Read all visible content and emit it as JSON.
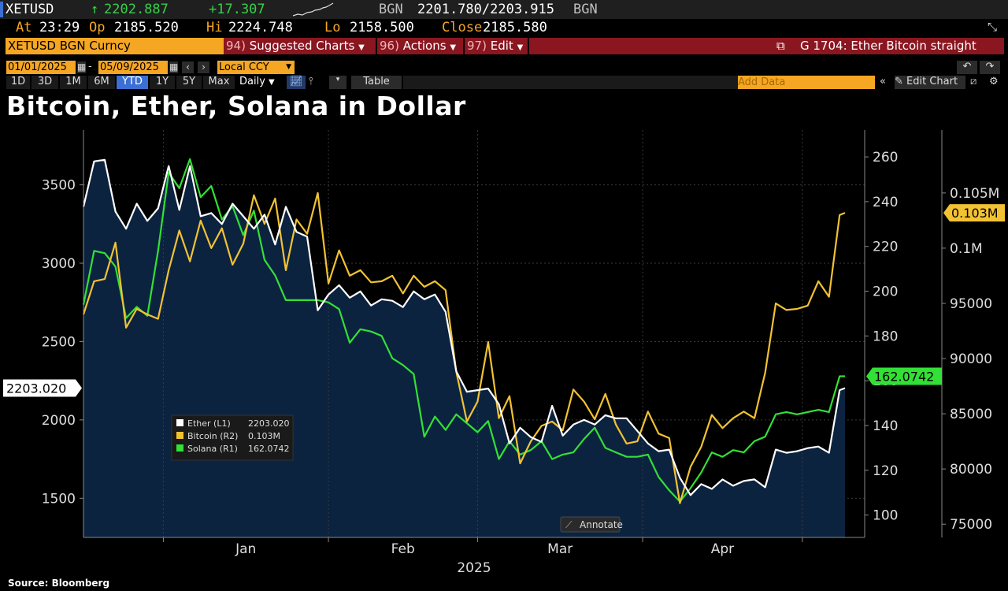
{
  "ticker": {
    "symbol": "XETUSD",
    "last": "2202.887",
    "change": "+17.307",
    "source": "BGN",
    "bid_ask": "2201.780/2203.915",
    "source2": "BGN",
    "at_label": "At",
    "at_time": "23:29",
    "op_label": "Op",
    "op_value": "2185.520",
    "hi_label": "Hi",
    "hi_value": "2224.748",
    "lo_label": "Lo",
    "lo_value": "2158.500",
    "close_label": "Close",
    "close_value": "2185.580"
  },
  "toolbar": {
    "security": "XETUSD BGN Curncy",
    "suggested_num": "94)",
    "suggested": "Suggested Charts",
    "actions_num": "96)",
    "actions": "Actions",
    "edit_num": "97)",
    "edit": "Edit",
    "chart_id": "G 1704: Ether Bitcoin straight",
    "date_from": "01/01/2025",
    "date_sep": "-",
    "date_to": "05/09/2025",
    "currency": "Local CCY",
    "ranges": [
      "1D",
      "3D",
      "1M",
      "6M",
      "YTD",
      "1Y",
      "5Y",
      "Max"
    ],
    "active_range": "YTD",
    "frequency": "Daily",
    "table": "Table",
    "add_data": "Add Data",
    "edit_chart": "Edit Chart",
    "colors": {
      "amber": "#f5a623",
      "red": "#8a1620",
      "active": "#3b6fd4"
    }
  },
  "chart_title": "Bitcoin, Ether, Solana in Dollar",
  "source_note": "Source: Bloomberg",
  "annotate_label": "Annotate",
  "chart_data": {
    "type": "line",
    "title": "Bitcoin, Ether, Solana in Dollar",
    "x_label": "2025",
    "x_months": [
      "Jan",
      "Feb",
      "Mar",
      "Apr"
    ],
    "x_range": [
      "2024-12-17",
      "2025-05-09"
    ],
    "axes": {
      "L1": {
        "min": 1250,
        "max": 3850,
        "ticks": [
          1500,
          2000,
          2500,
          3000,
          3500
        ]
      },
      "R1": {
        "min": 90,
        "max": 272,
        "ticks": [
          100,
          120,
          140,
          160,
          180,
          200,
          220,
          240,
          260
        ]
      },
      "R2": {
        "min": 73800,
        "max": 110700,
        "ticks": [
          "75000",
          "80000",
          "85000",
          "90000",
          "95000",
          "0.1M",
          "0.105M"
        ],
        "tick_values": [
          75000,
          80000,
          85000,
          90000,
          95000,
          100000,
          105000
        ]
      }
    },
    "last_value_tags": {
      "Ether": "2203.020",
      "Bitcoin": "0.103M",
      "Solana": "162.0742"
    },
    "grid": true,
    "legend_position": "bottom-left",
    "series": [
      {
        "name": "Ether",
        "legend_label": "Ether (L1)",
        "legend_value": "2203.020",
        "axis": "L1",
        "color": "#ffffff",
        "fill": "#0c2340",
        "dates": [
          "2024-12-17",
          "2024-12-19",
          "2024-12-21",
          "2024-12-23",
          "2024-12-25",
          "2024-12-27",
          "2024-12-29",
          "2024-12-31",
          "2025-01-02",
          "2025-01-04",
          "2025-01-06",
          "2025-01-08",
          "2025-01-10",
          "2025-01-12",
          "2025-01-14",
          "2025-01-16",
          "2025-01-18",
          "2025-01-20",
          "2025-01-22",
          "2025-01-24",
          "2025-01-26",
          "2025-01-28",
          "2025-01-30",
          "2025-02-01",
          "2025-02-03",
          "2025-02-05",
          "2025-02-07",
          "2025-02-09",
          "2025-02-11",
          "2025-02-13",
          "2025-02-15",
          "2025-02-17",
          "2025-02-19",
          "2025-02-21",
          "2025-02-23",
          "2025-02-25",
          "2025-02-27",
          "2025-03-01",
          "2025-03-03",
          "2025-03-05",
          "2025-03-07",
          "2025-03-09",
          "2025-03-11",
          "2025-03-13",
          "2025-03-15",
          "2025-03-17",
          "2025-03-19",
          "2025-03-21",
          "2025-03-23",
          "2025-03-25",
          "2025-03-27",
          "2025-03-29",
          "2025-03-31",
          "2025-04-02",
          "2025-04-04",
          "2025-04-06",
          "2025-04-08",
          "2025-04-10",
          "2025-04-12",
          "2025-04-14",
          "2025-04-16",
          "2025-04-18",
          "2025-04-20",
          "2025-04-22",
          "2025-04-24",
          "2025-04-26",
          "2025-04-28",
          "2025-04-30",
          "2025-05-02",
          "2025-05-04",
          "2025-05-06",
          "2025-05-08",
          "2025-05-09"
        ],
        "values": [
          3360,
          3650,
          3660,
          3330,
          3220,
          3380,
          3270,
          3350,
          3620,
          3340,
          3620,
          3300,
          3320,
          3250,
          3380,
          3300,
          3220,
          3310,
          3120,
          3360,
          3200,
          3170,
          2700,
          2800,
          2860,
          2780,
          2820,
          2730,
          2770,
          2760,
          2720,
          2820,
          2770,
          2800,
          2690,
          2310,
          2180,
          2190,
          2200,
          2100,
          1850,
          1950,
          1890,
          1860,
          2090,
          1900,
          1970,
          2000,
          1970,
          2030,
          2010,
          2010,
          1930,
          1850,
          1800,
          1810,
          1630,
          1520,
          1590,
          1560,
          1620,
          1580,
          1610,
          1620,
          1570,
          1810,
          1790,
          1800,
          1820,
          1830,
          1790,
          2190,
          2203
        ]
      },
      {
        "name": "Bitcoin",
        "legend_label": "Bitcoin (R2)",
        "legend_value": "0.103M",
        "axis": "R2",
        "color": "#f2c232",
        "dates": [
          "2024-12-17",
          "2024-12-19",
          "2024-12-21",
          "2024-12-23",
          "2024-12-25",
          "2024-12-27",
          "2024-12-29",
          "2024-12-31",
          "2025-01-02",
          "2025-01-04",
          "2025-01-06",
          "2025-01-08",
          "2025-01-10",
          "2025-01-12",
          "2025-01-14",
          "2025-01-16",
          "2025-01-18",
          "2025-01-20",
          "2025-01-22",
          "2025-01-24",
          "2025-01-26",
          "2025-01-28",
          "2025-01-30",
          "2025-02-01",
          "2025-02-03",
          "2025-02-05",
          "2025-02-07",
          "2025-02-09",
          "2025-02-11",
          "2025-02-13",
          "2025-02-15",
          "2025-02-17",
          "2025-02-19",
          "2025-02-21",
          "2025-02-23",
          "2025-02-25",
          "2025-02-27",
          "2025-03-01",
          "2025-03-03",
          "2025-03-05",
          "2025-03-07",
          "2025-03-09",
          "2025-03-11",
          "2025-03-13",
          "2025-03-15",
          "2025-03-17",
          "2025-03-19",
          "2025-03-21",
          "2025-03-23",
          "2025-03-25",
          "2025-03-27",
          "2025-03-29",
          "2025-03-31",
          "2025-04-02",
          "2025-04-04",
          "2025-04-06",
          "2025-04-08",
          "2025-04-10",
          "2025-04-12",
          "2025-04-14",
          "2025-04-16",
          "2025-04-18",
          "2025-04-20",
          "2025-04-22",
          "2025-04-24",
          "2025-04-26",
          "2025-04-28",
          "2025-04-30",
          "2025-05-02",
          "2025-05-04",
          "2025-05-06",
          "2025-05-08",
          "2025-05-09"
        ],
        "values": [
          94000,
          97000,
          97200,
          100500,
          92800,
          94500,
          94000,
          93600,
          98000,
          101600,
          98800,
          102500,
          100000,
          101800,
          98500,
          100400,
          104800,
          102200,
          104500,
          98000,
          102600,
          101300,
          105000,
          96800,
          99800,
          97500,
          98000,
          96900,
          97000,
          97500,
          95900,
          97500,
          96500,
          97000,
          96200,
          88800,
          84300,
          86100,
          91500,
          84600,
          86600,
          80500,
          82500,
          83900,
          84300,
          83500,
          87200,
          86100,
          84500,
          86800,
          84000,
          82300,
          82500,
          85200,
          83200,
          82800,
          76900,
          80200,
          82000,
          84900,
          83700,
          84600,
          85200,
          84600,
          88700,
          95000,
          94400,
          94500,
          94800,
          97000,
          95600,
          103000,
          103200
        ]
      },
      {
        "name": "Solana",
        "legend_label": "Solana (R1)",
        "legend_value": "162.0742",
        "axis": "R1",
        "color": "#33e036",
        "dates": [
          "2024-12-17",
          "2024-12-19",
          "2024-12-21",
          "2024-12-23",
          "2024-12-25",
          "2024-12-27",
          "2024-12-29",
          "2024-12-31",
          "2025-01-02",
          "2025-01-04",
          "2025-01-06",
          "2025-01-08",
          "2025-01-10",
          "2025-01-12",
          "2025-01-14",
          "2025-01-16",
          "2025-01-18",
          "2025-01-20",
          "2025-01-22",
          "2025-01-24",
          "2025-01-26",
          "2025-01-28",
          "2025-01-30",
          "2025-02-01",
          "2025-02-03",
          "2025-02-05",
          "2025-02-07",
          "2025-02-09",
          "2025-02-11",
          "2025-02-13",
          "2025-02-15",
          "2025-02-17",
          "2025-02-19",
          "2025-02-21",
          "2025-02-23",
          "2025-02-25",
          "2025-02-27",
          "2025-03-01",
          "2025-03-03",
          "2025-03-05",
          "2025-03-07",
          "2025-03-09",
          "2025-03-11",
          "2025-03-13",
          "2025-03-15",
          "2025-03-17",
          "2025-03-19",
          "2025-03-21",
          "2025-03-23",
          "2025-03-25",
          "2025-03-27",
          "2025-03-29",
          "2025-03-31",
          "2025-04-02",
          "2025-04-04",
          "2025-04-06",
          "2025-04-08",
          "2025-04-10",
          "2025-04-12",
          "2025-04-14",
          "2025-04-16",
          "2025-04-18",
          "2025-04-20",
          "2025-04-22",
          "2025-04-24",
          "2025-04-26",
          "2025-04-28",
          "2025-04-30",
          "2025-05-02",
          "2025-05-04",
          "2025-05-06",
          "2025-05-08",
          "2025-05-09"
        ],
        "values": [
          194,
          218,
          217,
          211,
          188,
          193,
          189,
          218,
          253,
          246,
          259,
          242,
          247,
          232,
          238,
          225,
          236,
          214,
          207,
          196,
          196,
          196,
          196,
          195,
          192,
          177,
          183,
          182,
          180,
          170,
          167,
          163,
          135,
          144,
          138,
          145,
          141,
          137,
          142,
          125,
          133,
          127,
          129,
          133,
          125,
          127,
          128,
          134,
          139,
          130,
          128,
          126,
          126,
          127,
          117,
          111,
          106,
          112,
          119,
          128,
          126,
          129,
          128,
          133,
          135,
          145,
          146,
          145,
          146,
          147,
          146,
          162,
          162
        ]
      }
    ]
  }
}
